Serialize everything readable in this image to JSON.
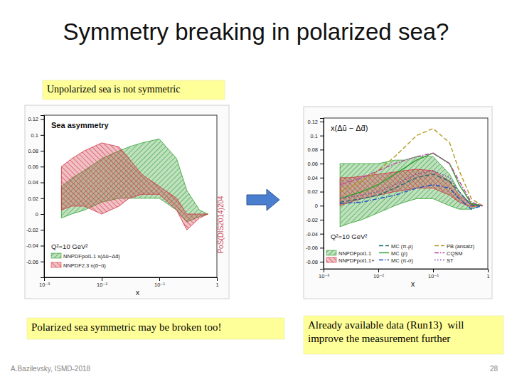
{
  "slide": {
    "title": "Symmetry breaking in polarized sea?",
    "boxes": [
      {
        "lines": [
          "Unpolarized sea is not symmetric"
        ]
      },
      {
        "lines": [
          "Polarized sea symmetric may be broken too!"
        ]
      },
      {
        "lines": [
          "Already available data (Run13)  will",
          "improve the measurement further"
        ]
      }
    ],
    "footer": "A.Bazilevsky, ISMD-2018",
    "page": 28
  },
  "chart_data": [
    {
      "type": "band",
      "title": "Sea asymmetry",
      "annotations": [
        "Q²=10 GeV²",
        "PoS(DIS2014)204"
      ],
      "x_label": "x",
      "log": "x",
      "xlim": [
        0.001,
        1
      ],
      "xticks": [
        {
          "value": 0.001,
          "label": "10⁻³"
        },
        {
          "value": 0.01,
          "label": "10⁻²"
        },
        {
          "value": 0.1,
          "label": "10⁻¹"
        },
        1
      ],
      "ylim": [
        -0.08,
        0.125
      ],
      "yticks": [
        -0.06,
        -0.04,
        -0.02,
        0,
        0.02,
        0.04,
        0.06,
        0.08,
        0.1,
        0.12
      ],
      "legend": "lower left",
      "series": [
        {
          "name": "NNPDFpol1.1 x(Δū−Δd̄)",
          "color": "#2e9e2e",
          "type": "band",
          "x": [
            0.002,
            0.003,
            0.005,
            0.01,
            0.02,
            0.03,
            0.05,
            0.1,
            0.2,
            0.3,
            0.5,
            0.7
          ],
          "lower": [
            -0.005,
            0.0,
            0.005,
            0.015,
            0.02,
            0.02,
            0.02,
            0.02,
            0.005,
            -0.01,
            -0.003,
            0
          ],
          "upper": [
            0.035,
            0.045,
            0.055,
            0.07,
            0.08,
            0.085,
            0.09,
            0.095,
            0.07,
            0.03,
            0.005,
            0
          ]
        },
        {
          "name": "NNPDF2.3 x(d̄−ū)",
          "color": "#d03040",
          "type": "band",
          "x": [
            0.002,
            0.003,
            0.005,
            0.01,
            0.02,
            0.03,
            0.05,
            0.1,
            0.2,
            0.3,
            0.5,
            0.7
          ],
          "lower": [
            0.005,
            0.01,
            0.01,
            0.0,
            0.01,
            0.02,
            0.025,
            0.025,
            0.005,
            -0.02,
            -0.005,
            0
          ],
          "upper": [
            0.06,
            0.07,
            0.08,
            0.09,
            0.085,
            0.07,
            0.05,
            0.035,
            0.02,
            0.0,
            0.0,
            0
          ]
        }
      ]
    },
    {
      "type": "band",
      "title": "x(Δū − Δd̄)",
      "annotations": [
        "Q²=10 GeV²"
      ],
      "x_label": "x",
      "log": "x",
      "xlim": [
        0.001,
        1
      ],
      "xticks": [
        {
          "value": 0.001,
          "label": "10⁻³"
        },
        {
          "value": 0.01,
          "label": "10⁻²"
        },
        {
          "value": 0.1,
          "label": "10⁻¹"
        },
        1
      ],
      "ylim": [
        -0.09,
        0.125
      ],
      "yticks": [
        -0.08,
        -0.06,
        -0.04,
        -0.02,
        0,
        0.02,
        0.04,
        0.06,
        0.08,
        0.1,
        0.12
      ],
      "legend": "lower left",
      "series": [
        {
          "name": "NNPDFpol1.1",
          "color": "#2e9e2e",
          "type": "band",
          "x": [
            0.002,
            0.003,
            0.005,
            0.01,
            0.02,
            0.03,
            0.05,
            0.1,
            0.2,
            0.3,
            0.5,
            0.7
          ],
          "lower": [
            -0.03,
            -0.025,
            -0.02,
            -0.01,
            0.0,
            0.005,
            0.01,
            0.01,
            0.0,
            -0.005,
            -0.005,
            0
          ],
          "upper": [
            0.06,
            0.06,
            0.06,
            0.06,
            0.065,
            0.065,
            0.07,
            0.07,
            0.045,
            0.02,
            0.002,
            0
          ]
        },
        {
          "name": "NNPDFpol1.1+",
          "color": "#d03040",
          "type": "band",
          "x": [
            0.002,
            0.003,
            0.005,
            0.01,
            0.02,
            0.03,
            0.05,
            0.1,
            0.2,
            0.3,
            0.5,
            0.7
          ],
          "lower": [
            0.0,
            0.005,
            0.01,
            0.015,
            0.02,
            0.022,
            0.025,
            0.025,
            0.015,
            0.005,
            -0.002,
            0
          ],
          "upper": [
            0.04,
            0.04,
            0.042,
            0.045,
            0.048,
            0.05,
            0.052,
            0.05,
            0.035,
            0.015,
            0.002,
            0
          ]
        },
        {
          "name": "MC (π-ρ)",
          "color": "#1f6f78",
          "type": "line",
          "line_style": "dashed",
          "x": [
            0.002,
            0.005,
            0.01,
            0.02,
            0.05,
            0.1,
            0.2,
            0.3,
            0.5,
            0.8
          ],
          "values": [
            0.005,
            0.01,
            0.015,
            0.025,
            0.04,
            0.045,
            0.035,
            0.02,
            0.0,
            0
          ]
        },
        {
          "name": "MC (ρ)",
          "color": "#2ca02c",
          "type": "line",
          "line_style": "solid",
          "x": [
            0.002,
            0.005,
            0.01,
            0.02,
            0.05,
            0.1,
            0.2,
            0.3,
            0.5,
            0.8
          ],
          "values": [
            0.01,
            0.02,
            0.03,
            0.045,
            0.065,
            0.075,
            0.06,
            0.03,
            0.003,
            0
          ]
        },
        {
          "name": "MC (π-σ)",
          "color": "#1f4fc0",
          "type": "line",
          "line_style": "dashdot",
          "x": [
            0.002,
            0.005,
            0.01,
            0.02,
            0.05,
            0.1,
            0.2,
            0.3,
            0.5,
            0.8
          ],
          "values": [
            0.003,
            0.005,
            0.01,
            0.015,
            0.025,
            0.03,
            0.025,
            0.01,
            -0.005,
            0
          ]
        },
        {
          "name": "PB (ansatz)",
          "color": "#b09a20",
          "type": "line",
          "line_style": "dashed",
          "x": [
            0.002,
            0.005,
            0.01,
            0.02,
            0.05,
            0.1,
            0.2,
            0.3,
            0.5,
            0.8
          ],
          "values": [
            0.02,
            0.035,
            0.05,
            0.07,
            0.1,
            0.11,
            0.09,
            0.05,
            0.01,
            0
          ]
        },
        {
          "name": "CQSM",
          "color": "#c040a0",
          "type": "line",
          "line_style": "dashdot",
          "x": [
            0.002,
            0.005,
            0.01,
            0.02,
            0.05,
            0.1,
            0.2,
            0.3,
            0.5,
            0.8
          ],
          "values": [
            0.03,
            0.04,
            0.05,
            0.06,
            0.07,
            0.075,
            0.06,
            0.035,
            0.005,
            0
          ]
        },
        {
          "name": "ST",
          "color": "#7a3fb0",
          "type": "line",
          "line_style": "dotted",
          "x": [
            0.002,
            0.005,
            0.01,
            0.02,
            0.05,
            0.1,
            0.2,
            0.3,
            0.5,
            0.8
          ],
          "values": [
            0.01,
            0.015,
            0.02,
            0.03,
            0.045,
            0.05,
            0.04,
            0.02,
            0.0,
            0
          ]
        }
      ]
    }
  ]
}
